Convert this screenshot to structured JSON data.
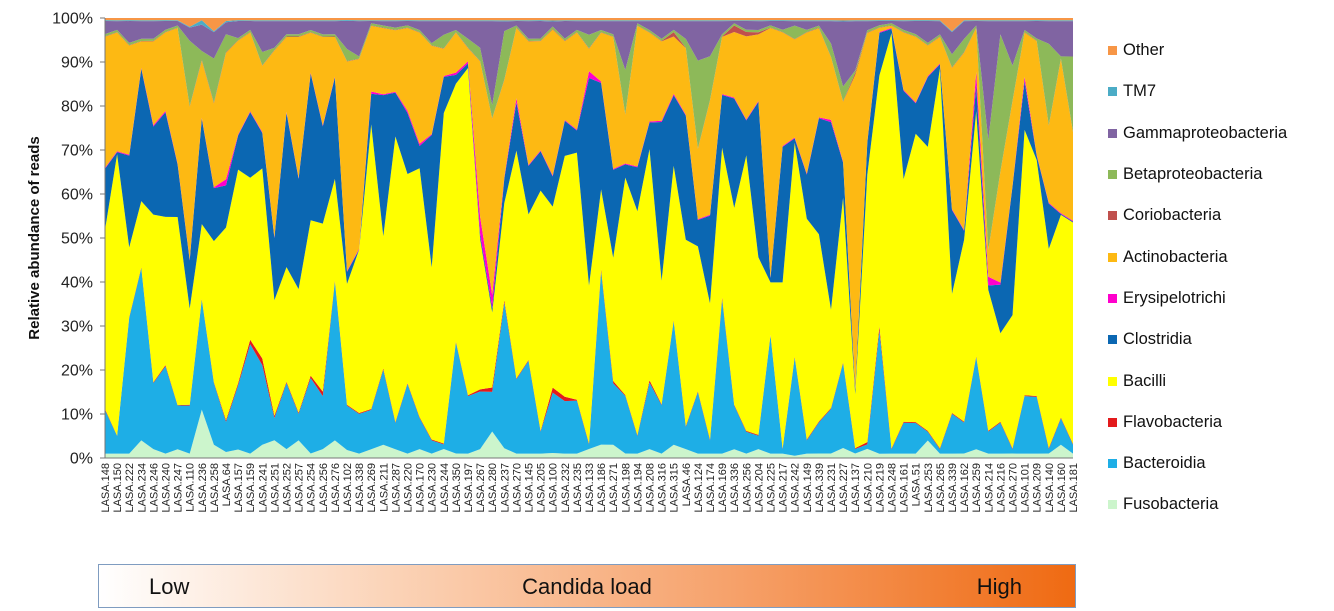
{
  "chart_data": {
    "type": "area",
    "stacked": "percent",
    "ylabel": "Relative abundance of reads",
    "ylim": [
      0,
      100
    ],
    "yticks": [
      "0%",
      "10%",
      "20%",
      "30%",
      "40%",
      "50%",
      "60%",
      "70%",
      "80%",
      "90%",
      "100%"
    ],
    "legend_position": "right",
    "categories": [
      "LASA.148",
      "LASA.150",
      "LASA.222",
      "LASA.234",
      "LASA.246",
      "LASA.240",
      "LASA.247",
      "LASA.110",
      "LASA.236",
      "LASA.258",
      "LASA.64",
      "LASA.157",
      "LASA.159",
      "LASA.241",
      "LASA.251",
      "LASA.252",
      "LASA.257",
      "LASA.254",
      "LASA.256",
      "LASA.276",
      "LASA.102",
      "LASA.338",
      "LASA.269",
      "LASA.211",
      "LASA.287",
      "LASA.220",
      "LASA.170",
      "LASA.230",
      "LASA.244",
      "LASA.350",
      "LASA.197",
      "LASA.267",
      "LASA.280",
      "LASA.237",
      "LASA.270",
      "LASA.145",
      "LASA.205",
      "LASA.100",
      "LASA.232",
      "LASA.235",
      "LASA.133",
      "LASA.186",
      "LASA.271",
      "LASA.198",
      "LASA.194",
      "LASA.208",
      "LASA.316",
      "LASA.315",
      "LASA.46",
      "LASA.124",
      "LASA.174",
      "LASA.169",
      "LASA.336",
      "LASA.256",
      "LASA.204",
      "LASA.225",
      "LASA.217",
      "LASA.242",
      "LASA.149",
      "LASA.339",
      "LASA.231",
      "LASA.227",
      "LASA.137",
      "LASA.210",
      "LASA.219",
      "LASA.248",
      "LASA.161",
      "LASA.51",
      "LASA.253",
      "LASA.265",
      "LASA.339",
      "LASA.162",
      "LASA.259",
      "LASA.214",
      "LASA.216",
      "LASA.270",
      "LASA.101",
      "LASA.209",
      "LASA.140",
      "LASA.160",
      "LASA.181"
    ],
    "series": [
      {
        "name": "Fusobacteria",
        "color": "#ccf5cc",
        "values": [
          1,
          1,
          1,
          4,
          2,
          1,
          2,
          1,
          11,
          3,
          1,
          2,
          1,
          3,
          4,
          2,
          4,
          1,
          2,
          4,
          2,
          1,
          2,
          3,
          2,
          1,
          2,
          1,
          2,
          1,
          1,
          2,
          6,
          2,
          1,
          1,
          1,
          1,
          1,
          1,
          2,
          3,
          3,
          1,
          1,
          2,
          1,
          3,
          2,
          1,
          1,
          1,
          2,
          1,
          2,
          1,
          1,
          0.5,
          1,
          1,
          1,
          2,
          1,
          2,
          1,
          1,
          1,
          1,
          4,
          1,
          1,
          1,
          2,
          1,
          1,
          1,
          1,
          1,
          1,
          3,
          1
        ]
      },
      {
        "name": "Bacteroidia",
        "color": "#1eaee6",
        "values": [
          10,
          4,
          31,
          39,
          15,
          20,
          10,
          11,
          25,
          14,
          5,
          15,
          25,
          18,
          5,
          15,
          6,
          17,
          12,
          36,
          11,
          9,
          9,
          17,
          6,
          16,
          7,
          3,
          1,
          25,
          13,
          13,
          9,
          30,
          17,
          21,
          5,
          12,
          12,
          12,
          1,
          39,
          14,
          13,
          4,
          15,
          11,
          28,
          5,
          14,
          3,
          35,
          10,
          5,
          3,
          27,
          1,
          22,
          3,
          7,
          10,
          17,
          1,
          1,
          29,
          1,
          7,
          7,
          2,
          1,
          9,
          7,
          21,
          5,
          7,
          1,
          13,
          13,
          1,
          6,
          2
        ]
      },
      {
        "name": "Flavobacteria",
        "color": "#e31a1c",
        "values": [
          0.2,
          0.1,
          0.2,
          0.2,
          0.2,
          0.3,
          0.1,
          0.2,
          0.2,
          0.2,
          0.3,
          0.5,
          1,
          1.5,
          0.5,
          0.3,
          0.3,
          0.5,
          1,
          0.3,
          0.2,
          0.2,
          0.2,
          0.3,
          0.2,
          0.2,
          0.2,
          0.2,
          0.2,
          0.2,
          0.2,
          0.5,
          1,
          0.5,
          0.2,
          0.2,
          0.2,
          1,
          1,
          0.2,
          0.2,
          0.5,
          0.5,
          0.2,
          0.2,
          0.5,
          0.2,
          0.2,
          0.2,
          0.2,
          0.2,
          0.5,
          0.2,
          0.2,
          0.2,
          0.2,
          0.2,
          0.2,
          0.2,
          0.2,
          0.2,
          0.2,
          0.2,
          0.5,
          1,
          0.2,
          0.2,
          0.2,
          0.2,
          0.2,
          0.2,
          0.2,
          0.2,
          0.2,
          0.2,
          0.2,
          0.2,
          0.2,
          0.2,
          0.2,
          0.2
        ]
      },
      {
        "name": "Bacilli",
        "color": "#ffff00",
        "values": [
          41,
          64,
          16,
          15,
          38,
          34,
          43,
          22,
          17,
          32,
          32,
          50,
          37,
          43,
          26,
          26,
          28,
          35,
          38,
          23,
          30,
          37,
          65,
          30,
          65,
          48,
          56,
          39,
          73,
          58,
          74,
          34,
          17,
          20,
          52,
          33,
          55,
          36,
          55,
          56,
          35,
          18,
          28,
          49,
          51,
          52,
          28,
          35,
          42,
          33,
          31,
          34,
          45,
          63,
          40,
          12,
          38,
          48,
          50,
          42,
          22,
          33,
          12,
          59,
          59,
          96,
          55,
          66,
          65,
          86,
          27,
          41,
          56,
          32,
          20,
          30,
          60,
          54,
          44,
          46,
          50
        ]
      },
      {
        "name": "Clostridia",
        "color": "#0b67b2",
        "values": [
          14,
          0.5,
          21,
          30,
          20,
          24,
          12,
          11,
          24,
          12,
          7,
          8,
          15,
          8,
          14,
          35,
          25,
          33,
          22,
          23,
          3,
          0,
          7,
          32,
          10,
          14,
          5,
          30,
          8,
          2,
          1,
          1,
          1,
          5,
          11,
          11,
          9,
          6,
          8,
          5,
          46,
          24,
          20,
          3,
          10,
          6,
          36,
          16,
          28,
          6,
          20,
          12,
          25,
          8,
          35,
          1,
          31,
          1,
          10,
          26,
          42,
          7,
          1,
          7,
          10,
          1,
          20,
          7,
          16,
          1,
          19,
          2,
          6,
          1,
          11,
          29,
          11,
          1,
          10,
          0.2,
          0.2
        ]
      },
      {
        "name": "Erysipelotrichi",
        "color": "#ff00cc",
        "values": [
          0.2,
          0.2,
          0.2,
          0.2,
          0.3,
          0.3,
          0.2,
          0.2,
          0.2,
          0.2,
          1,
          0.2,
          0.2,
          0.2,
          0.2,
          0.2,
          0.2,
          0.2,
          0.2,
          0.2,
          0.2,
          0.2,
          0.5,
          0.2,
          0.2,
          0.5,
          0.5,
          0.2,
          0.2,
          0.5,
          0.5,
          4,
          3,
          0.3,
          1,
          0.2,
          0.2,
          0.2,
          0.2,
          0.2,
          1.5,
          0.3,
          0.2,
          0.2,
          0.2,
          0.2,
          0.3,
          0.3,
          0.2,
          0.2,
          0.2,
          0.2,
          0.2,
          0.2,
          0.2,
          0.2,
          0.2,
          0.2,
          0.2,
          0.2,
          0.5,
          0.2,
          0.2,
          0.2,
          0.2,
          0.2,
          0.2,
          0.2,
          0.2,
          0.2,
          0.2,
          0.2,
          3,
          2,
          0.5,
          0.2,
          1,
          0.2,
          0.2,
          0.2,
          0.2
        ]
      },
      {
        "name": "Actinobacteria",
        "color": "#fdb913",
        "values": [
          30,
          27,
          25,
          6,
          19,
          18,
          31,
          35,
          13,
          19,
          21,
          22,
          18,
          15,
          42,
          17,
          32,
          9,
          20,
          9,
          52,
          43,
          15,
          15,
          14,
          19,
          25,
          20,
          6,
          9,
          3,
          35,
          40,
          20,
          16,
          28,
          25,
          29,
          18,
          22,
          5,
          11,
          30,
          11,
          32,
          20,
          18,
          13,
          15,
          16,
          26,
          13,
          15,
          19,
          15,
          57,
          26,
          22,
          32,
          20,
          14,
          12,
          70,
          24,
          1,
          0.5,
          13,
          15,
          7,
          6,
          32,
          40,
          10,
          6,
          25,
          19,
          10,
          26,
          17,
          35,
          20
        ]
      },
      {
        "name": "Coriobacteria",
        "color": "#c0504d",
        "values": [
          0.1,
          0.1,
          0.1,
          0.1,
          0.1,
          0.1,
          0.1,
          0.1,
          0.2,
          0.2,
          0.1,
          0.1,
          0.1,
          0.1,
          0.1,
          0.1,
          0.1,
          0.1,
          0.1,
          0.1,
          0.1,
          0.1,
          0.1,
          0.1,
          0.1,
          0.1,
          0.1,
          0.1,
          0.1,
          0.1,
          0.1,
          0.1,
          0.1,
          0.1,
          0.1,
          0.1,
          0.1,
          0.1,
          0.1,
          0.1,
          0.1,
          0.1,
          0.1,
          0.1,
          0.1,
          0.1,
          0.1,
          1,
          0.1,
          0.1,
          0.1,
          0.1,
          1.5,
          1,
          0.5,
          0.1,
          0.1,
          0.1,
          0.1,
          0.1,
          0.1,
          0.1,
          0.5,
          0.1,
          0.1,
          0.1,
          0.1,
          0.1,
          0.1,
          0.1,
          0.1,
          0.1,
          0.1,
          0.1,
          0.1,
          0.1,
          0.1,
          0.1,
          0.1,
          0.1,
          0.1
        ]
      },
      {
        "name": "Betaproteobacteria",
        "color": "#8db959",
        "values": [
          0.5,
          0.5,
          0.5,
          0.5,
          0.5,
          0.5,
          0.5,
          15,
          2,
          10,
          3,
          0.5,
          0.5,
          3,
          0.5,
          0.5,
          0.5,
          0.5,
          0.5,
          0.5,
          3,
          0.5,
          0.5,
          0.5,
          0.5,
          0.5,
          0.5,
          0.5,
          3,
          0.5,
          2,
          3,
          3,
          10,
          0.5,
          0.5,
          0.5,
          0.5,
          0.5,
          0.5,
          3,
          0.5,
          0.5,
          10,
          0.5,
          0.5,
          0.5,
          0.5,
          2,
          20,
          10,
          0.5,
          0.5,
          0.5,
          0.5,
          0.5,
          0.5,
          3,
          0.5,
          0.5,
          3,
          3,
          0.5,
          0.5,
          0.5,
          0.5,
          0.5,
          0.5,
          0.5,
          0.5,
          3,
          3,
          0.5,
          25,
          31,
          8,
          0.5,
          0.5,
          18,
          0.5,
          17
        ]
      },
      {
        "name": "Gammaproteobacteria",
        "color": "#8064a2",
        "values": [
          3,
          2,
          5,
          4,
          4,
          2,
          1,
          3,
          6,
          6,
          2,
          4,
          2,
          7,
          6,
          3,
          3,
          2,
          3,
          3,
          7,
          8,
          0.5,
          1,
          1.5,
          1,
          2,
          5,
          3,
          2,
          4,
          6,
          19,
          2,
          1,
          4,
          4,
          1,
          4,
          2,
          3,
          2,
          3,
          11,
          0.5,
          2,
          4,
          2,
          4,
          9,
          8,
          3,
          0.5,
          2,
          2,
          1,
          2,
          1,
          2,
          1,
          5,
          13,
          11,
          2,
          1,
          0.5,
          2,
          3,
          5,
          3,
          5,
          4,
          1,
          27,
          3,
          10,
          2,
          4,
          5,
          8,
          8
        ]
      },
      {
        "name": "TM7",
        "color": "#4bacc6",
        "values": [
          0.2,
          0.2,
          0.2,
          0.2,
          0.2,
          0.2,
          0.2,
          0.2,
          1,
          0.2,
          0.2,
          0.2,
          0.2,
          0.2,
          0.2,
          0.2,
          0.2,
          0.2,
          0.2,
          0.2,
          0.2,
          0.2,
          0.2,
          0.2,
          0.2,
          0.2,
          0.2,
          0.2,
          0.2,
          0.2,
          0.2,
          0.2,
          0.2,
          0.2,
          0.2,
          0.2,
          0.2,
          0.2,
          0.2,
          0.2,
          0.2,
          0.2,
          0.2,
          0.2,
          0.2,
          0.2,
          0.2,
          0.2,
          0.2,
          0.2,
          0.2,
          0.2,
          0.2,
          0.2,
          0.2,
          0.2,
          0.2,
          0.2,
          0.2,
          0.2,
          0.2,
          0.2,
          0.2,
          0.2,
          0.2,
          0.2,
          0.2,
          0.2,
          0.2,
          0.2,
          0.2,
          0.2,
          0.2,
          0.2,
          0.2,
          0.2,
          0.2,
          0.2,
          0.2,
          0.2,
          0.2
        ]
      },
      {
        "name": "Other",
        "color": "#f79646",
        "values": [
          0.5,
          0.5,
          0.5,
          0.5,
          0.5,
          0.5,
          0.5,
          2,
          0.5,
          3,
          0.5,
          0.5,
          0.5,
          0.5,
          0.5,
          0.5,
          0.5,
          0.5,
          0.5,
          0.5,
          0.5,
          0.5,
          0.5,
          0.5,
          0.5,
          0.5,
          0.5,
          0.5,
          0.5,
          0.5,
          0.5,
          0.5,
          0.5,
          0.5,
          0.5,
          0.5,
          0.5,
          0.5,
          0.5,
          0.5,
          0.5,
          0.5,
          0.5,
          0.5,
          0.5,
          0.5,
          0.5,
          0.5,
          0.5,
          0.5,
          0.5,
          0.5,
          0.5,
          0.5,
          0.5,
          0.5,
          0.5,
          0.5,
          0.5,
          0.5,
          0.5,
          0.5,
          0.5,
          0.5,
          0.5,
          0.5,
          0.5,
          0.5,
          0.5,
          0.5,
          3,
          0.5,
          0.5,
          0.5,
          0.5,
          0.5,
          0.5,
          0.5,
          0.5,
          0.5,
          0.5
        ]
      }
    ],
    "candida_load": {
      "low": "Low",
      "label": "Candida load",
      "high": "High"
    }
  }
}
